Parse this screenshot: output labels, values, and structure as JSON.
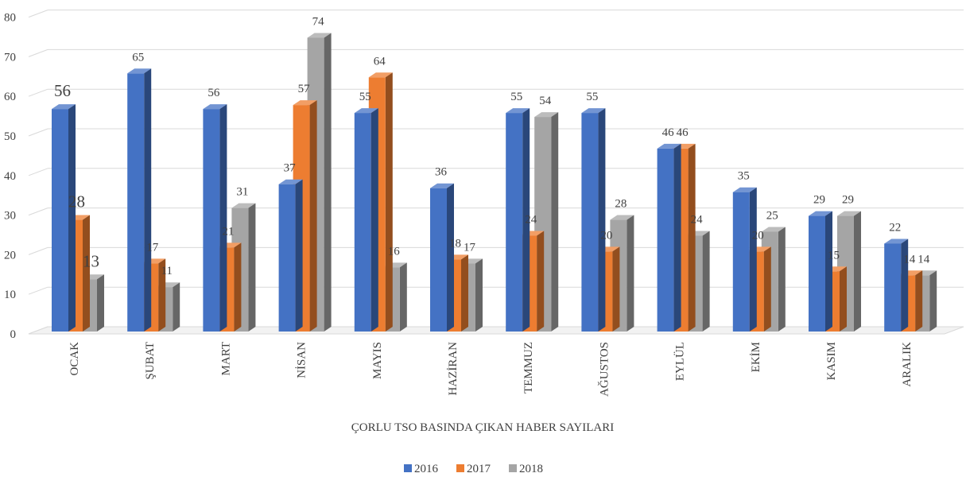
{
  "chart_data": {
    "type": "bar",
    "categories": [
      "OCAK",
      "ŞUBAT",
      "MART",
      "NİSAN",
      "MAYIS",
      "HAZİRAN",
      "TEMMUZ",
      "AĞUSTOS",
      "EYLÜL",
      "EKİM",
      "KASIM",
      "ARALIK"
    ],
    "series": [
      {
        "name": "2016",
        "color": "#4472c4",
        "values": [
          56,
          65,
          56,
          37,
          55,
          36,
          55,
          55,
          46,
          35,
          29,
          22
        ]
      },
      {
        "name": "2017",
        "color": "#ed7d31",
        "values": [
          28,
          17,
          21,
          57,
          64,
          18,
          24,
          20,
          46,
          20,
          15,
          14
        ]
      },
      {
        "name": "2018",
        "color": "#a5a5a5",
        "values": [
          13,
          11,
          31,
          74,
          16,
          17,
          54,
          28,
          24,
          25,
          29,
          14
        ]
      }
    ],
    "xlabel": "ÇORLU TSO BASINDA ÇIKAN HABER SAYILARI",
    "ylabel": "",
    "ylim": [
      0,
      80
    ],
    "yticks": [
      0,
      10,
      20,
      30,
      40,
      50,
      60,
      70,
      80
    ],
    "grid": true,
    "legend": "bottom",
    "style": "3d-clustered-column"
  }
}
